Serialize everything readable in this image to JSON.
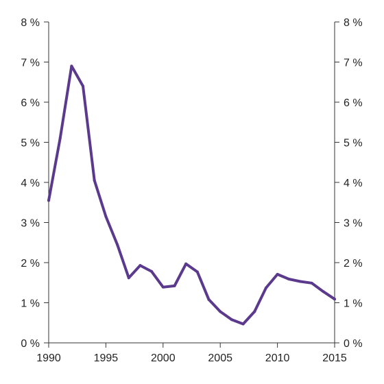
{
  "chart_data": {
    "type": "line",
    "title": "",
    "xlabel": "",
    "ylabel": "",
    "xlim": [
      1990,
      2015
    ],
    "ylim": [
      0,
      8
    ],
    "grid": false,
    "legend": "none",
    "y_tick_format": "{v} %",
    "x_ticks": [
      {
        "value": 1990,
        "label": "1990"
      },
      {
        "value": 1995,
        "label": "1995"
      },
      {
        "value": 2000,
        "label": "2000"
      },
      {
        "value": 2005,
        "label": "2005"
      },
      {
        "value": 2010,
        "label": "2010"
      },
      {
        "value": 2015,
        "label": "2015"
      }
    ],
    "y_ticks": [
      {
        "value": 0,
        "label": "0 %"
      },
      {
        "value": 1,
        "label": "1 %"
      },
      {
        "value": 2,
        "label": "2 %"
      },
      {
        "value": 3,
        "label": "3 %"
      },
      {
        "value": 4,
        "label": "4 %"
      },
      {
        "value": 5,
        "label": "5 %"
      },
      {
        "value": 6,
        "label": "6 %"
      },
      {
        "value": 7,
        "label": "7 %"
      },
      {
        "value": 8,
        "label": "8 %"
      }
    ],
    "series": [
      {
        "color": "#5b3a8e",
        "points": [
          {
            "x": 1990,
            "y": 3.55
          },
          {
            "x": 1991,
            "y": 5.1
          },
          {
            "x": 1992,
            "y": 6.9
          },
          {
            "x": 1993,
            "y": 6.4
          },
          {
            "x": 1994,
            "y": 4.05
          },
          {
            "x": 1995,
            "y": 3.15
          },
          {
            "x": 1996,
            "y": 2.45
          },
          {
            "x": 1997,
            "y": 1.62
          },
          {
            "x": 1998,
            "y": 1.93
          },
          {
            "x": 1999,
            "y": 1.78
          },
          {
            "x": 2000,
            "y": 1.39
          },
          {
            "x": 2001,
            "y": 1.42
          },
          {
            "x": 2002,
            "y": 1.97
          },
          {
            "x": 2003,
            "y": 1.77
          },
          {
            "x": 2004,
            "y": 1.08
          },
          {
            "x": 2005,
            "y": 0.78
          },
          {
            "x": 2006,
            "y": 0.58
          },
          {
            "x": 2007,
            "y": 0.47
          },
          {
            "x": 2008,
            "y": 0.78
          },
          {
            "x": 2009,
            "y": 1.37
          },
          {
            "x": 2010,
            "y": 1.71
          },
          {
            "x": 2011,
            "y": 1.59
          },
          {
            "x": 2012,
            "y": 1.53
          },
          {
            "x": 2013,
            "y": 1.49
          },
          {
            "x": 2014,
            "y": 1.28
          },
          {
            "x": 2015,
            "y": 1.09
          }
        ]
      }
    ]
  }
}
